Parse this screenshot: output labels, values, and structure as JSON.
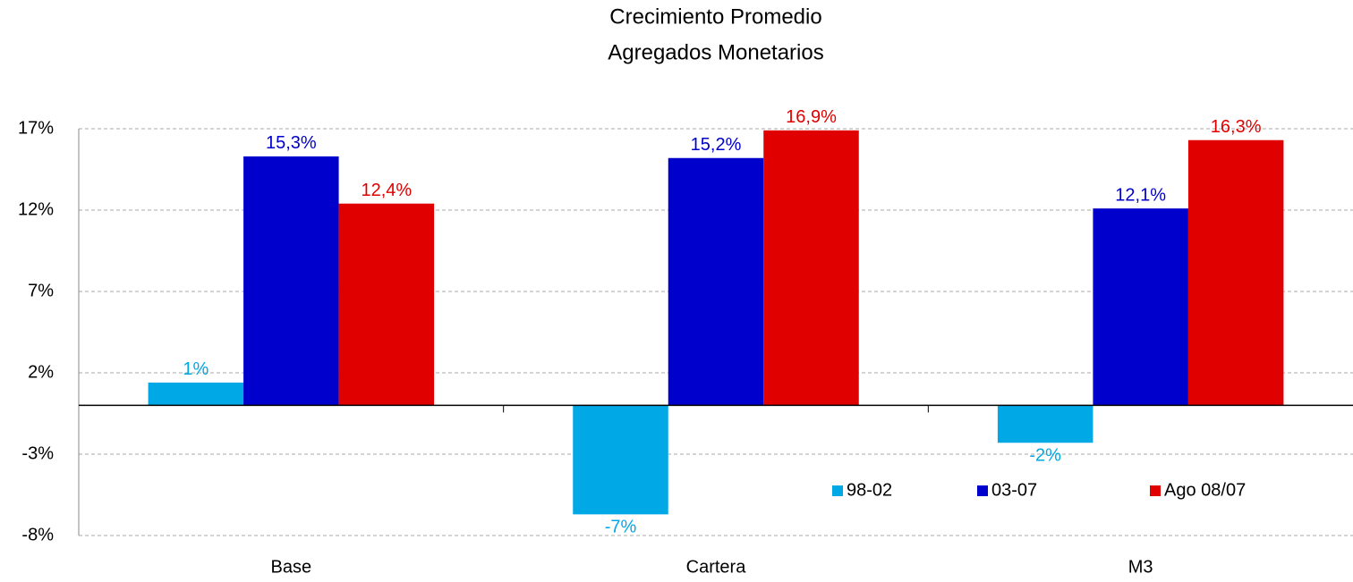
{
  "chart_data": {
    "type": "bar",
    "title": "Crecimiento Promedio",
    "subtitle": "Agregados Monetarios",
    "categories": [
      "Base",
      "Cartera",
      "M3"
    ],
    "series": [
      {
        "name": "98-02",
        "color": "#00a8e6",
        "values": [
          1.4,
          -6.7,
          -2.3
        ],
        "value_labels": [
          "1%",
          "-7%",
          "-2%"
        ]
      },
      {
        "name": "03-07",
        "color": "#0000cc",
        "values": [
          15.3,
          15.2,
          12.1
        ],
        "value_labels": [
          "15,3%",
          "15,2%",
          "12,1%"
        ]
      },
      {
        "name": "Ago 08/07",
        "color": "#e00000",
        "values": [
          12.4,
          16.9,
          16.3
        ],
        "value_labels": [
          "12,4%",
          "16,9%",
          "16,3%"
        ]
      }
    ],
    "ylim": [
      -8,
      17
    ],
    "yticks": [
      {
        "value": -8,
        "label": "-8%"
      },
      {
        "value": -3,
        "label": "-3%"
      },
      {
        "value": 2,
        "label": "2%"
      },
      {
        "value": 7,
        "label": "7%"
      },
      {
        "value": 12,
        "label": "12%"
      },
      {
        "value": 17,
        "label": "17%"
      }
    ],
    "grid": true,
    "legend": "lower right"
  }
}
